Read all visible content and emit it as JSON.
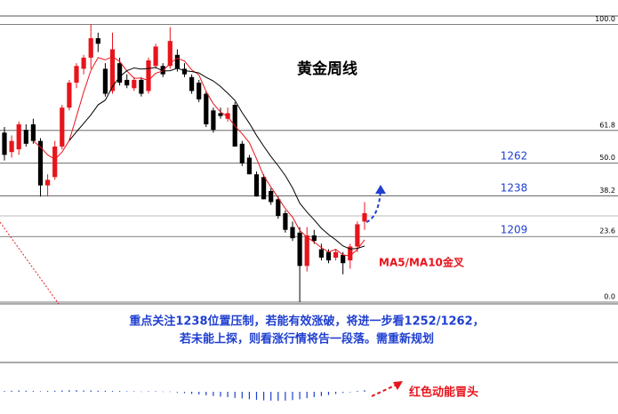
{
  "chart_data": {
    "type": "candlestick",
    "title": "黄金周线",
    "up_color": "#e8141c",
    "down_color": "#000000",
    "ma5_color": "#e8141c",
    "ma10_color": "#000000",
    "ylim": [
      0,
      103
    ],
    "yticks": [
      {
        "value": 0,
        "label": "0.0"
      },
      23.6,
      38.2,
      {
        "value": 50,
        "label": "50.0"
      },
      61.8,
      {
        "value": 100,
        "label": "100.0"
      }
    ],
    "grid": true,
    "ohlc": [
      [
        61,
        63,
        51,
        53
      ],
      [
        54,
        60,
        52,
        58
      ],
      [
        55,
        65,
        53,
        64
      ],
      [
        62,
        64,
        56,
        57
      ],
      [
        64,
        66,
        57,
        58
      ],
      [
        58,
        59,
        38,
        42
      ],
      [
        42,
        46,
        38,
        44
      ],
      [
        45,
        58,
        44,
        56
      ],
      [
        56,
        71,
        55,
        70
      ],
      [
        70,
        80,
        69,
        79
      ],
      [
        79,
        86,
        77,
        85
      ],
      [
        84,
        89,
        82,
        88
      ],
      [
        88,
        100,
        84,
        95
      ],
      [
        95,
        97,
        90,
        93
      ],
      [
        84,
        86,
        74,
        75
      ],
      [
        76,
        97,
        75,
        91
      ],
      [
        86,
        88,
        78,
        79
      ],
      [
        80,
        82,
        77,
        78
      ],
      [
        77,
        81,
        76,
        80
      ],
      [
        80,
        81,
        74,
        75
      ],
      [
        76,
        88,
        75,
        87
      ],
      [
        85,
        93,
        84,
        92
      ],
      [
        85,
        86,
        81,
        82
      ],
      [
        85,
        99,
        84,
        94
      ],
      [
        89,
        91,
        83,
        84
      ],
      [
        84,
        86,
        81,
        82
      ],
      [
        81,
        82,
        75,
        76
      ],
      [
        79,
        80,
        72,
        73
      ],
      [
        75,
        76,
        63,
        64
      ],
      [
        69,
        70,
        61,
        62
      ],
      [
        68,
        70,
        66,
        67
      ],
      [
        66,
        70,
        65,
        68
      ],
      [
        71,
        72,
        56,
        56
      ],
      [
        57,
        58,
        49,
        50
      ],
      [
        52,
        53,
        46,
        46
      ],
      [
        46,
        47,
        38,
        38
      ],
      [
        45,
        46,
        37,
        37
      ],
      [
        40,
        41,
        35,
        36
      ],
      [
        37,
        38,
        30,
        31
      ],
      [
        32,
        33,
        25,
        26
      ],
      [
        27,
        29,
        22,
        23
      ],
      [
        25,
        27,
        0,
        13
      ],
      [
        13,
        27,
        11,
        24
      ],
      [
        24,
        26,
        21,
        22
      ],
      [
        19,
        21,
        15,
        16
      ],
      [
        18,
        19,
        14,
        15
      ],
      [
        16,
        19,
        15,
        18
      ],
      [
        17,
        18,
        10,
        14
      ],
      [
        15,
        21,
        12,
        20
      ],
      [
        20,
        29,
        18,
        28
      ],
      [
        29,
        36,
        26,
        32
      ]
    ],
    "momentum": [
      0.3,
      0.4,
      0.5,
      0.4,
      0.3,
      0.2,
      0.3,
      0.4,
      0.5,
      0.6,
      0.6,
      0.5,
      0.5,
      0.4,
      0.4,
      0.3,
      0.3,
      0.2,
      0.2,
      0.1,
      0.2,
      0.2,
      0.1,
      0.1,
      -0.3,
      -0.5,
      -0.8,
      -1.0,
      -1.3,
      -1.6,
      -1.8,
      -2.0,
      -2.3,
      -2.5,
      -2.8,
      -3.0,
      -3.2,
      -3.3,
      -3.4,
      -3.3,
      -3.1,
      -2.8,
      -2.4,
      -2.0,
      -1.6,
      -1.2,
      -0.8,
      -0.4,
      -0.2,
      0.3,
      0.6
    ],
    "momentum_color": "#1f3fd0"
  },
  "annotations": {
    "price_levels": [
      "1262",
      "1238",
      "1209"
    ],
    "cross": "MA5/MA10金叉",
    "note": [
      "重点关注1238位置压制，若能有效涨破，将进一步看1252/1262，",
      "若未能上探，则看涨行情将告一段落。需重新规划"
    ],
    "momentum_note": "红色动能冒头"
  }
}
